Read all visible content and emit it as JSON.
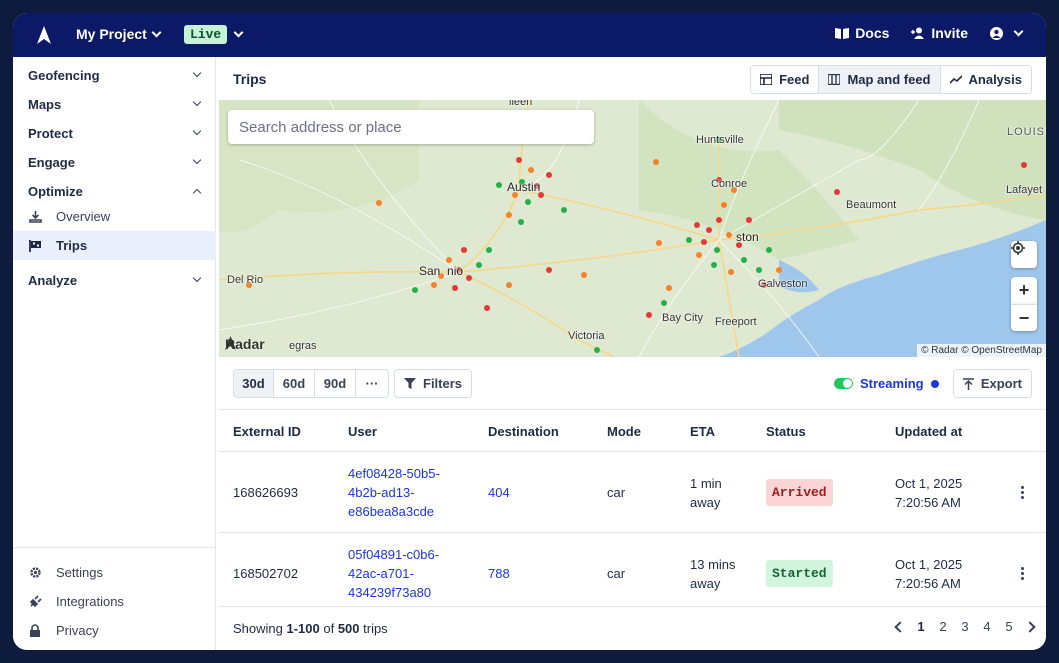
{
  "topbar": {
    "project": "My Project",
    "environment": "Live",
    "docs": "Docs",
    "invite": "Invite"
  },
  "sidebar": {
    "groups": [
      {
        "label": "Geofencing"
      },
      {
        "label": "Maps"
      },
      {
        "label": "Protect"
      },
      {
        "label": "Engage"
      },
      {
        "label": "Optimize"
      },
      {
        "label": "Analyze"
      }
    ],
    "optimize_items": [
      {
        "label": "Overview",
        "icon": "overview-icon"
      },
      {
        "label": "Trips",
        "icon": "trips-flag-icon",
        "active": true
      }
    ],
    "footer_items": [
      {
        "label": "Settings",
        "icon": "gear-icon"
      },
      {
        "label": "Integrations",
        "icon": "plug-icon"
      },
      {
        "label": "Privacy",
        "icon": "lock-icon"
      }
    ]
  },
  "main": {
    "title": "Trips",
    "view_tabs": [
      {
        "label": "Feed",
        "icon": "feed-icon"
      },
      {
        "label": "Map and feed",
        "icon": "map-icon",
        "active": true
      },
      {
        "label": "Analysis",
        "icon": "analysis-icon"
      }
    ]
  },
  "map": {
    "search_placeholder": "Search address or place",
    "labels": {
      "huntsville": "Huntsville",
      "conroe": "Conroe",
      "austin": "Austin",
      "houston": "ston",
      "beaumont": "Beaumont",
      "lafayette": "Lafayet",
      "louisiana": "LOUISIA",
      "san_antonio": "San  nio",
      "del_rio": "Del Rio",
      "galveston": "Galveston",
      "bay_city": "Bay City",
      "freeport": "Freeport",
      "victoria": "Victoria",
      "piedras": "egras",
      "killeen": "lleen"
    },
    "logo": "Radar",
    "attribution": "© Radar © OpenStreetMap",
    "zoom_in": "+",
    "zoom_out": "−"
  },
  "toolbar": {
    "ranges": [
      "30d",
      "60d",
      "90d",
      "···"
    ],
    "active_range": "30d",
    "filters": "Filters",
    "streaming": "Streaming",
    "export": "Export"
  },
  "table": {
    "columns": [
      "External ID",
      "User",
      "Destination",
      "Mode",
      "ETA",
      "Status",
      "Updated at"
    ],
    "rows": [
      {
        "external_id": "168626693",
        "user_l1": "4ef08428-50b5-",
        "user_l2": "4b2b-ad13-",
        "user_l3": "e86bea8a3cde",
        "destination": "404",
        "mode": "car",
        "eta_l1": "1 min",
        "eta_l2": "away",
        "status": "Arrived",
        "updated_l1": "Oct 1, 2025",
        "updated_l2": "7:20:56 AM"
      },
      {
        "external_id": "168502702",
        "user_l1": "05f04891-c0b6-",
        "user_l2": "42ac-a701-",
        "user_l3": "434239f73a80",
        "destination": "788",
        "mode": "car",
        "eta_l1": "13 mins",
        "eta_l2": "away",
        "status": "Started",
        "updated_l1": "Oct 1, 2025",
        "updated_l2": "7:20:56 AM"
      }
    ]
  },
  "footer": {
    "showing_prefix": "Showing ",
    "showing_range": "1-100",
    "showing_of": " of ",
    "showing_total": "500",
    "showing_suffix": " trips",
    "pages": [
      "1",
      "2",
      "3",
      "4",
      "5"
    ],
    "current_page": "1"
  },
  "colors": {
    "topbar": "#0c1966",
    "accent_link": "#1d36d6",
    "live_badge": "#c6f3d6",
    "arrived_badge": "#fbd5d5",
    "started_badge": "#d1f5dd",
    "map_land": "#dfe8d0",
    "map_water": "#9fc7ec"
  }
}
